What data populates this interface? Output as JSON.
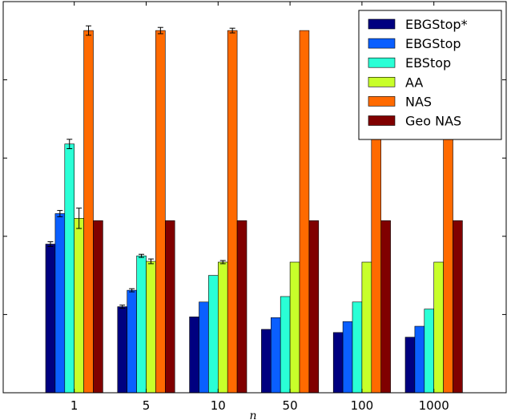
{
  "chart_data": {
    "type": "bar",
    "title": "",
    "xlabel": "n",
    "ylabel": "",
    "categories": [
      "1",
      "5",
      "10",
      "50",
      "100",
      "1000"
    ],
    "ylim": [
      0,
      5
    ],
    "y_ticks_labeled": false,
    "grid": false,
    "legend_position": "top-right",
    "series": [
      {
        "name": "EBGStop*",
        "color": "#000080",
        "values": [
          1.9,
          1.1,
          0.97,
          0.81,
          0.77,
          0.71
        ],
        "errors": [
          0.03,
          0.02,
          0.0,
          0.0,
          0.0,
          0.0
        ]
      },
      {
        "name": "EBGStop",
        "color": "#0a5fff",
        "values": [
          2.29,
          1.31,
          1.16,
          0.96,
          0.91,
          0.85
        ],
        "errors": [
          0.04,
          0.02,
          0.0,
          0.0,
          0.0,
          0.0
        ]
      },
      {
        "name": "EBStop",
        "color": "#2affd6",
        "values": [
          3.18,
          1.75,
          1.5,
          1.23,
          1.16,
          1.07
        ],
        "errors": [
          0.06,
          0.02,
          0.0,
          0.0,
          0.0,
          0.0
        ]
      },
      {
        "name": "AA",
        "color": "#c8ff2a",
        "values": [
          2.23,
          1.68,
          1.67,
          1.67,
          1.67,
          1.67
        ],
        "errors": [
          0.13,
          0.03,
          0.02,
          0.0,
          0.0,
          0.0
        ]
      },
      {
        "name": "NAS",
        "color": "#ff6a00",
        "values": [
          4.63,
          4.63,
          4.63,
          4.63,
          4.63,
          4.63
        ],
        "errors": [
          0.06,
          0.04,
          0.03,
          0.0,
          0.0,
          0.0
        ]
      },
      {
        "name": "Geo NAS",
        "color": "#800000",
        "values": [
          2.2,
          2.2,
          2.2,
          2.2,
          2.2,
          2.2
        ],
        "errors": [
          0.0,
          0.0,
          0.0,
          0.0,
          0.0,
          0.0
        ]
      }
    ]
  }
}
